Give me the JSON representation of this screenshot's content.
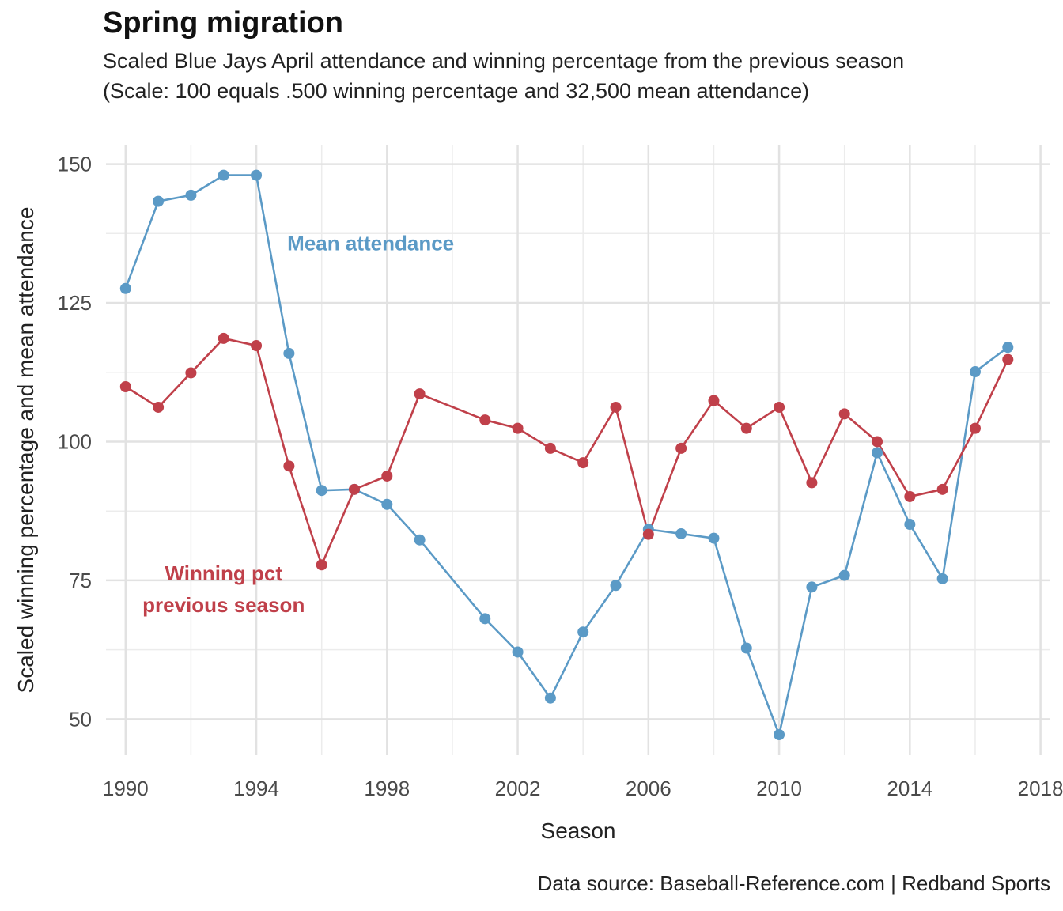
{
  "title": "Spring migration",
  "subtitle_line1": "Scaled Blue Jays April attendance and winning percentage from the previous season",
  "subtitle_line2": "(Scale: 100 equals .500 winning percentage and 32,500 mean attendance)",
  "caption": "Data source: Baseball-Reference.com  |  Redband Sports",
  "chart_data": {
    "type": "line",
    "xlabel": "Season",
    "ylabel": "Scaled winning percentage and mean attendance",
    "xlim": [
      1989.4,
      2018.3
    ],
    "ylim": [
      43.5,
      153.5
    ],
    "x_ticks": [
      1990,
      1994,
      1998,
      2002,
      2006,
      2010,
      2014,
      2018
    ],
    "y_ticks": [
      50,
      75,
      100,
      125,
      150
    ],
    "grid": true,
    "series": [
      {
        "name": "Mean attendance",
        "color": "#5b9ac6",
        "label_lines": [
          "Mean attendance"
        ],
        "label_at": [
          1997.5,
          134.5
        ],
        "points": [
          [
            1990,
            127.6
          ],
          [
            1991,
            143.3
          ],
          [
            1992,
            144.4
          ],
          [
            1993,
            148.0
          ],
          [
            1994,
            148.0
          ],
          [
            1995,
            115.9
          ],
          [
            1996,
            91.2
          ],
          [
            1997,
            91.4
          ],
          [
            1998,
            88.7
          ],
          [
            1999,
            82.3
          ],
          [
            2001,
            68.1
          ],
          [
            2002,
            62.1
          ],
          [
            2003,
            53.8
          ],
          [
            2004,
            65.7
          ],
          [
            2005,
            74.1
          ],
          [
            2006,
            84.2
          ],
          [
            2007,
            83.4
          ],
          [
            2008,
            82.6
          ],
          [
            2009,
            62.8
          ],
          [
            2010,
            47.2
          ],
          [
            2011,
            73.8
          ],
          [
            2012,
            75.9
          ],
          [
            2013,
            98.0
          ],
          [
            2014,
            85.1
          ],
          [
            2015,
            75.3
          ],
          [
            2016,
            112.6
          ],
          [
            2017,
            117.0
          ]
        ]
      },
      {
        "name": "Winning pct previous season",
        "color": "#c0404a",
        "label_lines": [
          "Winning pct",
          "previous season"
        ],
        "label_at": [
          1993.0,
          75.0
        ],
        "points": [
          [
            1990,
            109.9
          ],
          [
            1991,
            106.2
          ],
          [
            1992,
            112.4
          ],
          [
            1993,
            118.6
          ],
          [
            1994,
            117.3
          ],
          [
            1995,
            95.6
          ],
          [
            1996,
            77.8
          ],
          [
            1997,
            91.4
          ],
          [
            1998,
            93.8
          ],
          [
            1999,
            108.6
          ],
          [
            2001,
            103.9
          ],
          [
            2002,
            102.4
          ],
          [
            2003,
            98.8
          ],
          [
            2004,
            96.2
          ],
          [
            2005,
            106.2
          ],
          [
            2006,
            83.3
          ],
          [
            2007,
            98.8
          ],
          [
            2008,
            107.4
          ],
          [
            2009,
            102.4
          ],
          [
            2010,
            106.2
          ],
          [
            2011,
            92.6
          ],
          [
            2012,
            105.0
          ],
          [
            2013,
            100.0
          ],
          [
            2014,
            90.1
          ],
          [
            2015,
            91.4
          ],
          [
            2016,
            102.4
          ],
          [
            2017,
            114.8
          ]
        ]
      }
    ]
  }
}
